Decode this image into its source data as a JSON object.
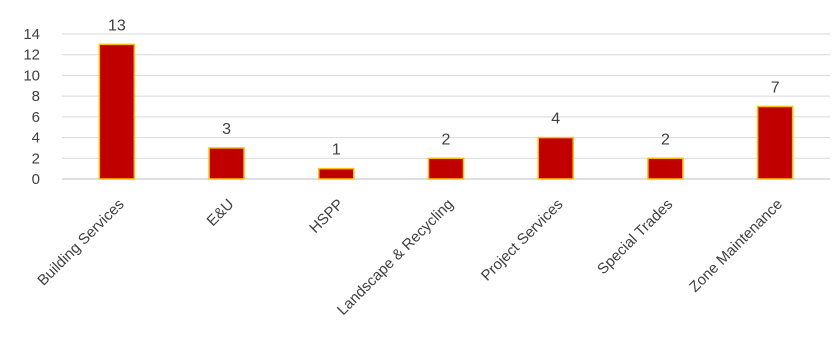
{
  "chart_data": {
    "type": "bar",
    "title": "",
    "xlabel": "",
    "ylabel": "",
    "categories": [
      "Building Services",
      "E&U",
      "HSPP",
      "Landscape & Recycling",
      "Project Services",
      "Special Trades",
      "Zone Maintenance"
    ],
    "values": [
      13,
      3,
      1,
      2,
      4,
      2,
      7
    ],
    "data_labels": [
      "13",
      "3",
      "1",
      "2",
      "4",
      "2",
      "7"
    ],
    "ylim": [
      0,
      14
    ],
    "yticks": [
      "0",
      "2",
      "4",
      "6",
      "8",
      "10",
      "12",
      "14"
    ],
    "grid": true,
    "legend": "none",
    "bar_color": "#c00000",
    "bar_edge_color": "#ffc000"
  }
}
